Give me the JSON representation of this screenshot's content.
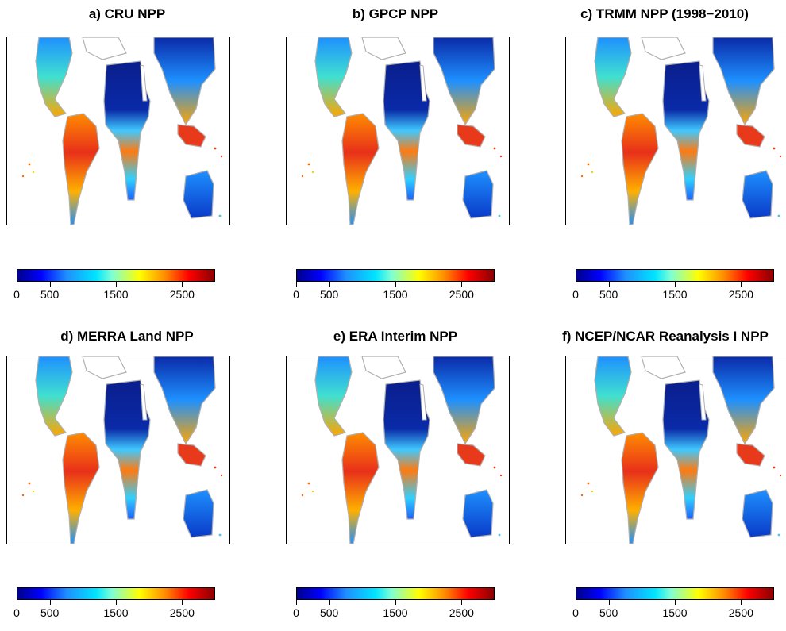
{
  "panels": [
    {
      "title": "a) CRU NPP"
    },
    {
      "title": "b) GPCP NPP"
    },
    {
      "title": "c) TRMM NPP (1998−2010)"
    },
    {
      "title": "d) MERRA Land NPP"
    },
    {
      "title": "e) ERA Interim NPP"
    },
    {
      "title": "f) NCEP/NCAR Reanalysis I NPP"
    }
  ],
  "colorbar": {
    "range": [
      0,
      3000
    ],
    "ticks": [
      "0",
      "500",
      "1500",
      "2500"
    ],
    "colors": [
      "#00008b",
      "#0000ff",
      "#1e90ff",
      "#00e5ff",
      "#7fffd4",
      "#ffff00",
      "#ff8c00",
      "#ff0000",
      "#8b0000"
    ]
  },
  "colors": {
    "coastline": "#b0b0b0",
    "desert_low": "#0a1e8c",
    "forest_high": "#e83a1a"
  }
}
